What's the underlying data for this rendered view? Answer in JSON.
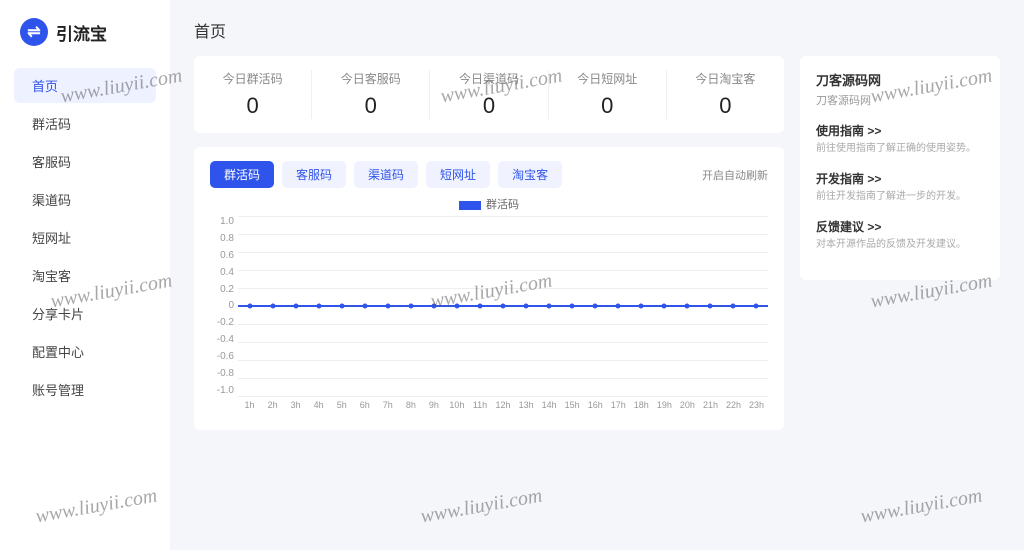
{
  "logo": {
    "text": "引流宝"
  },
  "nav": [
    {
      "label": "首页",
      "active": true
    },
    {
      "label": "群活码",
      "active": false
    },
    {
      "label": "客服码",
      "active": false
    },
    {
      "label": "渠道码",
      "active": false
    },
    {
      "label": "短网址",
      "active": false
    },
    {
      "label": "淘宝客",
      "active": false
    },
    {
      "label": "分享卡片",
      "active": false
    },
    {
      "label": "配置中心",
      "active": false
    },
    {
      "label": "账号管理",
      "active": false
    }
  ],
  "page_title": "首页",
  "stats": [
    {
      "label": "今日群活码",
      "value": "0"
    },
    {
      "label": "今日客服码",
      "value": "0"
    },
    {
      "label": "今日渠道码",
      "value": "0"
    },
    {
      "label": "今日短网址",
      "value": "0"
    },
    {
      "label": "今日淘宝客",
      "value": "0"
    }
  ],
  "chart": {
    "tabs": [
      {
        "label": "群活码",
        "active": true
      },
      {
        "label": "客服码",
        "active": false
      },
      {
        "label": "渠道码",
        "active": false
      },
      {
        "label": "短网址",
        "active": false
      },
      {
        "label": "淘宝客",
        "active": false
      }
    ],
    "refresh_label": "开启自动刷新",
    "legend_label": "群活码",
    "y_ticks": [
      "1.0",
      "0.8",
      "0.6",
      "0.4",
      "0.2",
      "0",
      "-0.2",
      "-0.4",
      "-0.6",
      "-0.8",
      "-1.0"
    ],
    "x_ticks": [
      "1h",
      "2h",
      "3h",
      "4h",
      "5h",
      "6h",
      "7h",
      "8h",
      "9h",
      "10h",
      "11h",
      "12h",
      "13h",
      "14h",
      "15h",
      "16h",
      "17h",
      "18h",
      "19h",
      "20h",
      "21h",
      "22h",
      "23h"
    ],
    "values": [
      0,
      0,
      0,
      0,
      0,
      0,
      0,
      0,
      0,
      0,
      0,
      0,
      0,
      0,
      0,
      0,
      0,
      0,
      0,
      0,
      0,
      0,
      0
    ],
    "ylim": [
      -1.0,
      1.0
    ],
    "line_color": "#2f54eb",
    "grid_color": "#eeeeee",
    "background_color": "#ffffff"
  },
  "sidebar_card": {
    "title": "刀客源码网",
    "subtitle": "刀客源码网",
    "links": [
      {
        "title": "使用指南 >>",
        "desc": "前往使用指南了解正确的使用姿势。"
      },
      {
        "title": "开发指南 >>",
        "desc": "前往开发指南了解进一步的开发。"
      },
      {
        "title": "反馈建议 >>",
        "desc": "对本开源作品的反馈及开发建议。"
      }
    ]
  },
  "watermark_text": "www.liuyii.com"
}
